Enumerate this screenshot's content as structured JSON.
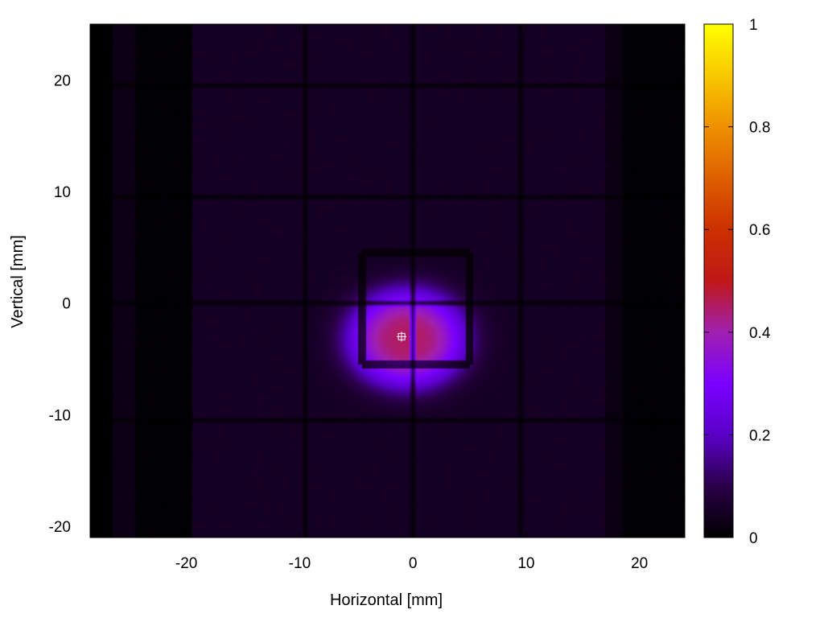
{
  "chart_data": {
    "type": "heatmap",
    "title": "",
    "xlabel": "Horizontal [mm]",
    "ylabel": "Vertical [mm]",
    "xlim": [
      -28.5,
      24
    ],
    "ylim": [
      -21,
      25
    ],
    "xticks": [
      -20,
      -10,
      0,
      10,
      20
    ],
    "yticks": [
      -20,
      -10,
      0,
      10,
      20
    ],
    "colorbar": {
      "range": [
        0,
        1
      ],
      "ticks": [
        0,
        0.2,
        0.4,
        0.6,
        0.8,
        1
      ],
      "tick_labels": [
        "0",
        "0.2",
        "0.4",
        "0.6",
        "0.8",
        "1"
      ],
      "colormap": [
        {
          "v": 0.0,
          "color": "#000000"
        },
        {
          "v": 0.1,
          "color": "#2a0048"
        },
        {
          "v": 0.2,
          "color": "#5a00c8"
        },
        {
          "v": 0.3,
          "color": "#7a00ff"
        },
        {
          "v": 0.4,
          "color": "#a020b0"
        },
        {
          "v": 0.5,
          "color": "#c01818"
        },
        {
          "v": 0.6,
          "color": "#cc3000"
        },
        {
          "v": 0.7,
          "color": "#dd6000"
        },
        {
          "v": 0.8,
          "color": "#ee9000"
        },
        {
          "v": 0.9,
          "color": "#f8c800"
        },
        {
          "v": 1.0,
          "color": "#ffff00"
        }
      ]
    },
    "background_level": 0.05,
    "beam_spot": {
      "center": [
        -0.5,
        -3.2
      ],
      "sigma_x": 4.5,
      "sigma_y": 3.8,
      "peak": 0.4
    },
    "vertical_grid_lines": [
      -9.5,
      0,
      9.5
    ],
    "horizontal_grid_lines": [
      19.5,
      9.5,
      0,
      -10.5
    ],
    "inner_box": {
      "x": [
        -4.5,
        5
      ],
      "y": [
        -5.5,
        4.5
      ]
    },
    "dark_bands": [
      {
        "x": [
          -28.5,
          -26.5
        ],
        "level": 0.0
      },
      {
        "x": [
          -26.5,
          -24.5
        ],
        "level": 0.03
      },
      {
        "x": [
          -24.5,
          -19.5
        ],
        "level": 0.005
      },
      {
        "x": [
          17,
          18.5
        ],
        "level": 0.025
      },
      {
        "x": [
          18.5,
          24
        ],
        "level": 0.005
      }
    ],
    "centroid_marker": [
      -1,
      -3
    ]
  }
}
